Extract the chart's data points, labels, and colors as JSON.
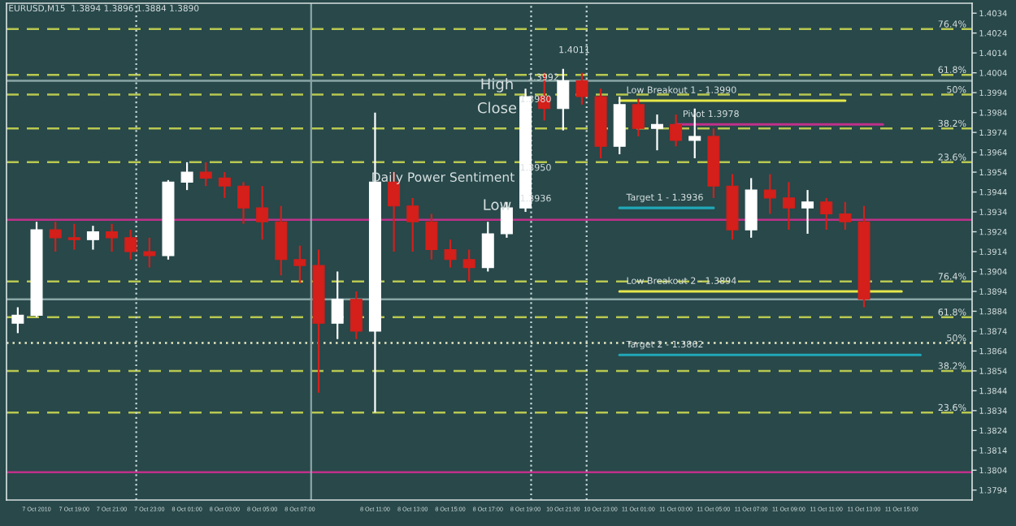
{
  "chart_data": {
    "type": "candlestick",
    "title": "EURUSD,M15  1.3894 1.3896 1.3884 1.3890",
    "categories": [
      null,
      "7 Oct 2010",
      null,
      "7 Oct 19:00",
      null,
      "7 Oct 21:00",
      null,
      "7 Oct 23:00",
      null,
      "8 Oct 01:00",
      null,
      "8 Oct 03:00",
      null,
      "8 Oct 05:00",
      null,
      "8 Oct 07:00",
      null,
      null,
      null,
      "8 Oct 11:00",
      null,
      "8 Oct 13:00",
      null,
      "8 Oct 15:00",
      null,
      "8 Oct 17:00",
      null,
      "8 Oct 19:00",
      null,
      "10 Oct 21:00",
      null,
      "10 Oct 23:00",
      null,
      "11 Oct 01:00",
      null,
      "11 Oct 03:00",
      null,
      "11 Oct 05:00",
      null,
      "11 Oct 07:00",
      null,
      "11 Oct 09:00",
      null,
      "11 Oct 11:00",
      null,
      "11 Oct 13:00",
      null,
      "11 Oct 15:00",
      null,
      null,
      null
    ],
    "ohlc": [
      [
        1.3878,
        1.3886,
        1.3873,
        1.3882
      ],
      [
        1.3882,
        1.3929,
        1.3881,
        1.3925
      ],
      [
        1.3925,
        1.3929,
        1.3914,
        1.3921
      ],
      [
        1.3921,
        1.3928,
        1.3915,
        1.392
      ],
      [
        1.392,
        1.3927,
        1.3915,
        1.3924
      ],
      [
        1.3924,
        1.3928,
        1.3914,
        1.3921
      ],
      [
        1.3921,
        1.3925,
        1.391,
        1.3914
      ],
      [
        1.3914,
        1.3921,
        1.3906,
        1.3912
      ],
      [
        1.3912,
        1.395,
        1.391,
        1.3949
      ],
      [
        1.3949,
        1.3959,
        1.3945,
        1.3954
      ],
      [
        1.3954,
        1.3959,
        1.3947,
        1.3951
      ],
      [
        1.3951,
        1.3954,
        1.3941,
        1.3947
      ],
      [
        1.3947,
        1.3949,
        1.3928,
        1.3936
      ],
      [
        1.3936,
        1.3947,
        1.392,
        1.3929
      ],
      [
        1.3929,
        1.3937,
        1.3902,
        1.391
      ],
      [
        1.391,
        1.3917,
        1.3898,
        1.3907
      ],
      [
        1.3907,
        1.3915,
        1.3843,
        1.3878
      ],
      [
        1.3878,
        1.3904,
        1.387,
        1.389
      ],
      [
        1.389,
        1.3894,
        1.387,
        1.3874
      ],
      [
        1.3874,
        1.3984,
        1.3833,
        1.3949
      ],
      [
        1.3949,
        1.3954,
        1.3914,
        1.3937
      ],
      [
        1.3937,
        1.3941,
        1.3914,
        1.3929
      ],
      [
        1.3929,
        1.3933,
        1.391,
        1.3915
      ],
      [
        1.3915,
        1.392,
        1.3906,
        1.391
      ],
      [
        1.391,
        1.3915,
        1.3899,
        1.3906
      ],
      [
        1.3906,
        1.3929,
        1.3904,
        1.3923
      ],
      [
        1.3923,
        1.3939,
        1.3921,
        1.3936
      ],
      [
        1.3936,
        1.3996,
        1.3934,
        1.3992
      ],
      [
        1.3992,
        1.4004,
        1.398,
        1.3986
      ],
      [
        1.3986,
        1.4006,
        1.3975,
        1.4
      ],
      [
        1.4,
        1.4004,
        1.3988,
        1.3992
      ],
      [
        1.3992,
        1.3996,
        1.3961,
        1.3967
      ],
      [
        1.3967,
        1.3992,
        1.3963,
        1.3988
      ],
      [
        1.3988,
        1.3991,
        1.3972,
        1.3976
      ],
      [
        1.3976,
        1.3983,
        1.3965,
        1.3978
      ],
      [
        1.3978,
        1.3983,
        1.3967,
        1.397
      ],
      [
        1.397,
        1.3986,
        1.3961,
        1.3972
      ],
      [
        1.3972,
        1.3976,
        1.3941,
        1.3947
      ],
      [
        1.3947,
        1.3953,
        1.392,
        1.3925
      ],
      [
        1.3925,
        1.3951,
        1.3921,
        1.3945
      ],
      [
        1.3945,
        1.3953,
        1.3933,
        1.3941
      ],
      [
        1.3941,
        1.3949,
        1.3925,
        1.3936
      ],
      [
        1.3936,
        1.3945,
        1.3923,
        1.3939
      ],
      [
        1.3939,
        1.3941,
        1.3925,
        1.3933
      ],
      [
        1.3933,
        1.3939,
        1.3925,
        1.3929
      ],
      [
        1.3929,
        1.3937,
        1.3886,
        1.389
      ],
      null,
      null,
      null,
      null,
      null
    ],
    "colors": [
      "#ffffff",
      "#ffffff",
      "#d41f1a",
      "#d41f1a",
      "#ffffff",
      "#d41f1a",
      "#d41f1a",
      "#d41f1a",
      "#ffffff",
      "#ffffff",
      "#d41f1a",
      "#d41f1a",
      "#d41f1a",
      "#d41f1a",
      "#d41f1a",
      "#d41f1a",
      "#d41f1a",
      "#ffffff",
      "#d41f1a",
      "#ffffff",
      "#d41f1a",
      "#d41f1a",
      "#d41f1a",
      "#d41f1a",
      "#d41f1a",
      "#ffffff",
      "#ffffff",
      "#ffffff",
      "#d41f1a",
      "#ffffff",
      "#d41f1a",
      "#d41f1a",
      "#ffffff",
      "#d41f1a",
      "#ffffff",
      "#d41f1a",
      "#ffffff",
      "#d41f1a",
      "#d41f1a",
      "#ffffff",
      "#d41f1a",
      "#d41f1a",
      "#ffffff",
      "#d41f1a",
      "#d41f1a",
      "#d41f1a",
      null,
      null,
      null,
      null,
      null
    ],
    "series": [
      {
        "type": "line",
        "name": "Low Breakout 1 - 1.3990",
        "color": "#e6e84a",
        "values": [
          null,
          null,
          null,
          null,
          null,
          null,
          null,
          null,
          null,
          null,
          null,
          null,
          null,
          null,
          null,
          null,
          null,
          null,
          null,
          null,
          null,
          null,
          null,
          null,
          null,
          null,
          null,
          null,
          null,
          null,
          null,
          null,
          1.399,
          1.399,
          1.399,
          1.399,
          1.399,
          1.399,
          1.399,
          1.399,
          1.399,
          1.399,
          1.399,
          1.399,
          1.399,
          null,
          null,
          null,
          null,
          null,
          null
        ]
      },
      {
        "type": "line",
        "name": "Pivot 1.3978",
        "color": "#c0308a",
        "values": [
          null,
          null,
          null,
          null,
          null,
          null,
          null,
          null,
          null,
          null,
          null,
          null,
          null,
          null,
          null,
          null,
          null,
          null,
          null,
          null,
          null,
          null,
          null,
          null,
          null,
          null,
          null,
          null,
          null,
          null,
          null,
          null,
          null,
          null,
          null,
          1.3978,
          1.3978,
          1.3978,
          1.3978,
          1.3978,
          1.3978,
          1.3978,
          1.3978,
          1.3978,
          1.3978,
          1.3978,
          1.3978,
          null,
          null,
          null,
          null
        ]
      },
      {
        "type": "line",
        "name": "Target 1 - 1.3936",
        "color": "#20a8b8",
        "values": [
          null,
          null,
          null,
          null,
          null,
          null,
          null,
          null,
          null,
          null,
          null,
          null,
          null,
          null,
          null,
          null,
          null,
          null,
          null,
          null,
          null,
          null,
          null,
          null,
          null,
          null,
          null,
          null,
          null,
          null,
          null,
          null,
          1.3936,
          1.3936,
          1.3936,
          1.3936,
          1.3936,
          1.3936,
          null,
          null,
          null,
          null,
          null,
          null,
          null,
          null,
          null,
          null,
          null,
          null,
          null
        ]
      },
      {
        "type": "line",
        "name": "Low Breakout 2 - 1.3894",
        "color": "#e6e84a",
        "values": [
          null,
          null,
          null,
          null,
          null,
          null,
          null,
          null,
          null,
          null,
          null,
          null,
          null,
          null,
          null,
          null,
          null,
          null,
          null,
          null,
          null,
          null,
          null,
          null,
          null,
          null,
          null,
          null,
          null,
          null,
          null,
          null,
          1.3894,
          1.3894,
          1.3894,
          1.3894,
          1.3894,
          1.3894,
          1.3894,
          1.3894,
          1.3894,
          1.3894,
          1.3894,
          1.3894,
          1.3894,
          1.3894,
          1.3894,
          1.3894,
          null,
          null,
          null
        ]
      },
      {
        "type": "line",
        "name": "Target 2 - 1.3862",
        "color": "#20a8b8",
        "values": [
          null,
          null,
          null,
          null,
          null,
          null,
          null,
          null,
          null,
          null,
          null,
          null,
          null,
          null,
          null,
          null,
          null,
          null,
          null,
          null,
          null,
          null,
          null,
          null,
          null,
          null,
          null,
          null,
          null,
          null,
          null,
          null,
          1.3862,
          1.3862,
          1.3862,
          1.3862,
          1.3862,
          1.3862,
          1.3862,
          1.3862,
          1.3862,
          1.3862,
          1.3862,
          1.3862,
          1.3862,
          1.3862,
          1.3862,
          1.3862,
          1.3862,
          null,
          null
        ]
      }
    ],
    "ref_lines": [
      {
        "axis": "y",
        "value": 1.4026,
        "color": "#b8c850",
        "line_style": "dashed"
      },
      {
        "axis": "y",
        "value": 1.4003,
        "color": "#b8c850",
        "line_style": "dashed"
      },
      {
        "axis": "y",
        "value": 1.4,
        "color": "#8aa6a6",
        "line_style": "solid"
      },
      {
        "axis": "y",
        "value": 1.3993,
        "color": "#b8c850",
        "line_style": "dashed"
      },
      {
        "axis": "y",
        "value": 1.3976,
        "color": "#b8c850",
        "line_style": "dashed"
      },
      {
        "axis": "y",
        "value": 1.3959,
        "color": "#b8c850",
        "line_style": "dashed"
      },
      {
        "axis": "y",
        "value": 1.393,
        "color": "#c0308a",
        "line_style": "solid"
      },
      {
        "axis": "y",
        "value": 1.3899,
        "color": "#b8c850",
        "line_style": "dashed"
      },
      {
        "axis": "y",
        "value": 1.389,
        "color": "#8aa6a6",
        "line_style": "solid"
      },
      {
        "axis": "y",
        "value": 1.3881,
        "color": "#b8c850",
        "line_style": "dashed"
      },
      {
        "axis": "y",
        "value": 1.3868,
        "color": "#e8e8c0",
        "line_style": "dotted"
      },
      {
        "axis": "y",
        "value": 1.3854,
        "color": "#b8c850",
        "line_style": "dashed"
      },
      {
        "axis": "y",
        "value": 1.3833,
        "color": "#b8c850",
        "line_style": "dashed"
      },
      {
        "axis": "y",
        "value": 1.3803,
        "color": "#c0308a",
        "line_style": "solid"
      }
    ],
    "annotations": [
      "High",
      "1.3992",
      "Close",
      "1.3980",
      "1.4011",
      "Daily Power Sentiment",
      "1.3950",
      "Low",
      "1.3936",
      {
        "text": "76.4%",
        "y": 1.4026
      },
      {
        "text": "61.8%",
        "y": 1.4003
      },
      {
        "text": "50%",
        "y": 1.3993
      },
      {
        "text": "38.2%",
        "y": 1.3976
      },
      {
        "text": "23.6%",
        "y": 1.3959
      },
      {
        "text": "76.4%",
        "y": 1.3899
      },
      {
        "text": "61.8%",
        "y": 1.3881
      },
      {
        "text": "50%",
        "y": 1.3868
      },
      {
        "text": "38.2%",
        "y": 1.3854
      },
      {
        "text": "23.6%",
        "y": 1.3833
      }
    ],
    "ylim": [
      1.3789,
      1.4039
    ],
    "yticks": [
      1.3794,
      1.3804,
      1.3814,
      1.3824,
      1.3834,
      1.3844,
      1.3854,
      1.3864,
      1.3874,
      1.3884,
      1.3894,
      1.3904,
      1.3914,
      1.3924,
      1.3934,
      1.3944,
      1.3954,
      1.3964,
      1.3974,
      1.3984,
      1.3994,
      1.4004,
      1.4014,
      1.4024,
      1.4034
    ],
    "grid": false,
    "legend": false
  }
}
